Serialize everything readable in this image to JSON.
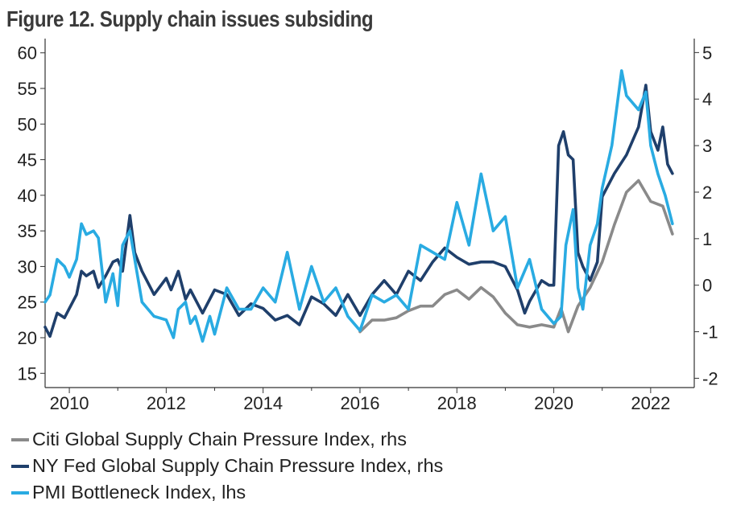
{
  "chart_data": {
    "type": "line",
    "title": "Figure 12. Supply chain issues subsiding",
    "x_ticks": [
      "2010",
      "2012",
      "2014",
      "2016",
      "2018",
      "2020",
      "2022"
    ],
    "x_range": [
      2009.5,
      2022.9
    ],
    "y_left": {
      "range": [
        13,
        62
      ],
      "ticks": [
        15,
        20,
        25,
        30,
        35,
        40,
        45,
        50,
        55,
        60
      ]
    },
    "y_right": {
      "range": [
        -2.2,
        5.3
      ],
      "ticks": [
        -2,
        -1,
        0,
        1,
        2,
        3,
        4,
        5
      ]
    },
    "legend": {
      "position": "bottom"
    },
    "series": [
      {
        "name": "Citi Global Supply Chain Pressure Index, rhs",
        "axis": "right",
        "color": "#8a8a8a",
        "x": [
          2016.0,
          2016.25,
          2016.5,
          2016.75,
          2017.0,
          2017.25,
          2017.5,
          2017.75,
          2018.0,
          2018.25,
          2018.5,
          2018.75,
          2019.0,
          2019.25,
          2019.5,
          2019.75,
          2020.0,
          2020.15,
          2020.3,
          2020.5,
          2020.75,
          2021.0,
          2021.25,
          2021.5,
          2021.75,
          2022.0,
          2022.25,
          2022.45
        ],
        "values": [
          -1.0,
          -0.75,
          -0.75,
          -0.7,
          -0.55,
          -0.45,
          -0.45,
          -0.2,
          -0.1,
          -0.3,
          -0.05,
          -0.25,
          -0.6,
          -0.85,
          -0.9,
          -0.85,
          -0.9,
          -0.5,
          -1.0,
          -0.45,
          -0.05,
          0.5,
          1.3,
          2.0,
          2.25,
          1.8,
          1.7,
          1.1
        ]
      },
      {
        "name": "NY Fed Global Supply Chain Pressure Index, rhs",
        "axis": "right",
        "color": "#1f3f6b",
        "x": [
          2009.5,
          2009.6,
          2009.75,
          2009.9,
          2010.0,
          2010.15,
          2010.25,
          2010.35,
          2010.5,
          2010.6,
          2010.75,
          2010.9,
          2011.0,
          2011.1,
          2011.25,
          2011.35,
          2011.5,
          2011.75,
          2012.0,
          2012.1,
          2012.25,
          2012.4,
          2012.5,
          2012.75,
          2013.0,
          2013.25,
          2013.5,
          2013.75,
          2014.0,
          2014.25,
          2014.5,
          2014.75,
          2015.0,
          2015.25,
          2015.5,
          2015.75,
          2016.0,
          2016.25,
          2016.5,
          2016.75,
          2017.0,
          2017.25,
          2017.5,
          2017.75,
          2018.0,
          2018.25,
          2018.5,
          2018.75,
          2019.0,
          2019.25,
          2019.4,
          2019.5,
          2019.75,
          2019.9,
          2020.0,
          2020.1,
          2020.2,
          2020.3,
          2020.4,
          2020.5,
          2020.6,
          2020.75,
          2020.9,
          2021.0,
          2021.25,
          2021.5,
          2021.75,
          2021.9,
          2022.0,
          2022.15,
          2022.25,
          2022.35,
          2022.45
        ],
        "values": [
          -0.9,
          -1.1,
          -0.6,
          -0.7,
          -0.5,
          -0.2,
          0.3,
          0.2,
          0.3,
          -0.05,
          0.2,
          0.5,
          0.55,
          0.3,
          1.5,
          0.7,
          0.3,
          -0.2,
          0.15,
          -0.1,
          0.3,
          -0.3,
          -0.1,
          -0.6,
          -0.1,
          -0.2,
          -0.65,
          -0.4,
          -0.5,
          -0.75,
          -0.65,
          -0.85,
          -0.25,
          -0.4,
          -0.65,
          -0.2,
          -0.65,
          -0.2,
          0.1,
          -0.2,
          0.3,
          0.1,
          0.5,
          0.8,
          0.6,
          0.45,
          0.5,
          0.5,
          0.4,
          -0.1,
          -0.6,
          -0.35,
          0.1,
          0.0,
          0.0,
          3.0,
          3.3,
          2.8,
          2.7,
          0.7,
          0.4,
          0.1,
          0.5,
          1.9,
          2.4,
          2.8,
          3.4,
          4.3,
          3.3,
          2.9,
          3.4,
          2.6,
          2.4
        ]
      },
      {
        "name": "PMI Bottleneck Index, lhs",
        "axis": "left",
        "color": "#29abe2",
        "x": [
          2009.5,
          2009.6,
          2009.75,
          2009.9,
          2010.0,
          2010.15,
          2010.25,
          2010.35,
          2010.5,
          2010.6,
          2010.75,
          2010.9,
          2011.0,
          2011.1,
          2011.25,
          2011.35,
          2011.5,
          2011.75,
          2012.0,
          2012.15,
          2012.25,
          2012.4,
          2012.5,
          2012.6,
          2012.75,
          2012.9,
          2013.0,
          2013.25,
          2013.5,
          2013.75,
          2014.0,
          2014.25,
          2014.5,
          2014.75,
          2015.0,
          2015.25,
          2015.5,
          2015.75,
          2016.0,
          2016.25,
          2016.5,
          2016.75,
          2017.0,
          2017.25,
          2017.5,
          2017.75,
          2018.0,
          2018.25,
          2018.5,
          2018.75,
          2019.0,
          2019.25,
          2019.5,
          2019.75,
          2020.0,
          2020.15,
          2020.25,
          2020.4,
          2020.5,
          2020.6,
          2020.75,
          2020.9,
          2021.0,
          2021.2,
          2021.4,
          2021.5,
          2021.75,
          2021.9,
          2022.0,
          2022.15,
          2022.3,
          2022.45
        ],
        "values": [
          25,
          26,
          31,
          30,
          28.5,
          31,
          36,
          34.5,
          35,
          34,
          25,
          29,
          24.5,
          33,
          35,
          31,
          25,
          23,
          22.5,
          20,
          24,
          25,
          22,
          23,
          19.5,
          23,
          20.5,
          27,
          24,
          24,
          27,
          25,
          32,
          24,
          30,
          25,
          27,
          23,
          21,
          26,
          25,
          26,
          24,
          33,
          32,
          31,
          39,
          33,
          43,
          35,
          37,
          27,
          31,
          24,
          22,
          23,
          33,
          38,
          27,
          24,
          33,
          36,
          41,
          47,
          57.5,
          54,
          52,
          54.5,
          47,
          43,
          40,
          36
        ]
      }
    ]
  }
}
